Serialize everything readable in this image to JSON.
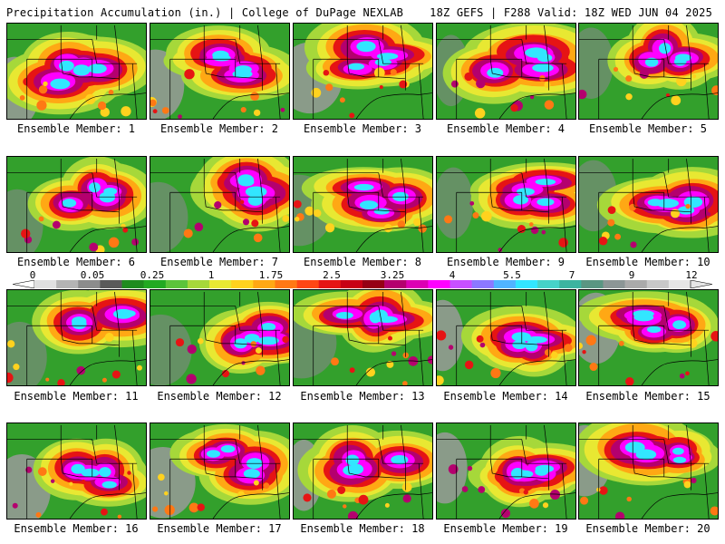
{
  "header": {
    "left": "Precipitation Accumulation (in.) | College of DuPage NEXLAB",
    "right": "18Z GEFS | F288 Valid: 18Z WED JUN 04 2025"
  },
  "legend": {
    "labels": [
      "0",
      "0.05",
      "0.25",
      "1",
      "1.75",
      "2.5",
      "3.25",
      "4",
      "5.5",
      "7",
      "9",
      "12"
    ],
    "colors": [
      "#e0e0e0",
      "#b4b4b4",
      "#8c8c8c",
      "#5a5a5a",
      "#1e8c1e",
      "#22aa22",
      "#5cc43a",
      "#a6d83a",
      "#e8e832",
      "#ffd21e",
      "#ffa814",
      "#ff7814",
      "#ff4614",
      "#e61414",
      "#c80014",
      "#960014",
      "#b4006e",
      "#dc00b4",
      "#ff00ff",
      "#c850ff",
      "#8c78ff",
      "#50b4ff",
      "#32e6ff",
      "#46d2c8",
      "#3cb4a0",
      "#5a9682",
      "#8c9696",
      "#aaaaaa",
      "#c8c8c8",
      "#e6e6e6"
    ]
  },
  "panels": [
    {
      "caption": "Ensemble Member: 1"
    },
    {
      "caption": "Ensemble Member: 2"
    },
    {
      "caption": "Ensemble Member: 3"
    },
    {
      "caption": "Ensemble Member: 4"
    },
    {
      "caption": "Ensemble Member: 5"
    },
    {
      "caption": "Ensemble Member: 6"
    },
    {
      "caption": "Ensemble Member: 7"
    },
    {
      "caption": "Ensemble Member: 8"
    },
    {
      "caption": "Ensemble Member: 9"
    },
    {
      "caption": "Ensemble Member: 10"
    },
    {
      "caption": "Ensemble Member: 11"
    },
    {
      "caption": "Ensemble Member: 12"
    },
    {
      "caption": "Ensemble Member: 13"
    },
    {
      "caption": "Ensemble Member: 14"
    },
    {
      "caption": "Ensemble Member: 15"
    },
    {
      "caption": "Ensemble Member: 16"
    },
    {
      "caption": "Ensemble Member: 17"
    },
    {
      "caption": "Ensemble Member: 18"
    },
    {
      "caption": "Ensemble Member: 19"
    },
    {
      "caption": "Ensemble Member: 20"
    }
  ]
}
